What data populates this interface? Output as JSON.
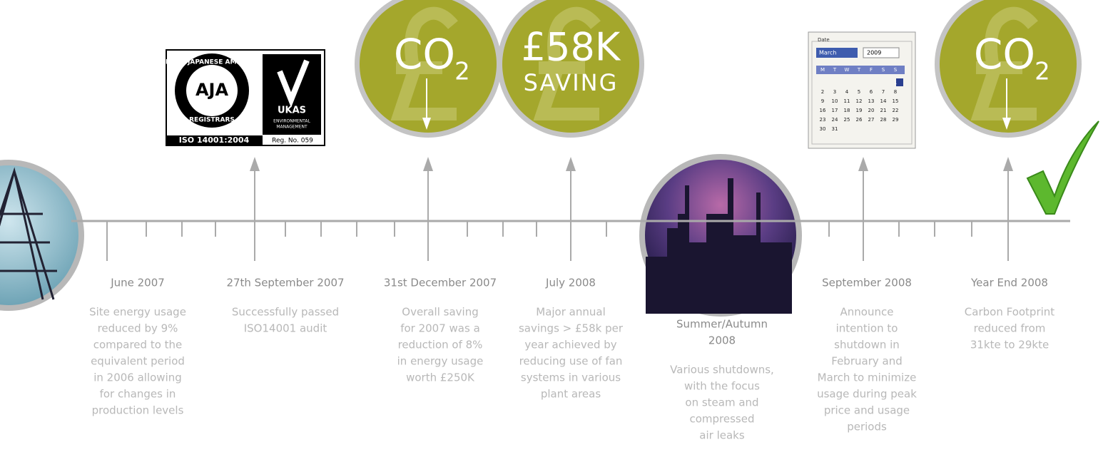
{
  "events": [
    {
      "date_lines": [
        "June 2007"
      ],
      "description_lines": [
        "Site energy usage",
        "reduced by 9%",
        "compared to the",
        "equivalent period",
        "in 2006 allowing",
        "for changes in",
        "production levels"
      ]
    },
    {
      "date_lines": [
        "27th September 2007"
      ],
      "description_lines": [
        "Successfully passed",
        "ISO14001 audit"
      ]
    },
    {
      "date_lines": [
        "31st December 2007"
      ],
      "description_lines": [
        "Overall saving",
        "for 2007 was a",
        "reduction of 8%",
        "in energy usage",
        "worth £250K"
      ]
    },
    {
      "date_lines": [
        "July 2008"
      ],
      "description_lines": [
        "Major annual",
        "savings > £58k per",
        "year achieved by",
        "reducing use of fan",
        "systems in various",
        "plant areas"
      ]
    },
    {
      "date_lines": [
        "Summer/Autumn",
        "2008"
      ],
      "description_lines": [
        "Various shutdowns,",
        "with the focus",
        "on steam and",
        "compressed",
        "air leaks"
      ]
    },
    {
      "date_lines": [
        "September 2008"
      ],
      "description_lines": [
        "Announce",
        "intention to",
        "shutdown in",
        "February and",
        "March to minimize",
        "usage during peak",
        "price and usage",
        "periods"
      ]
    },
    {
      "date_lines": [
        "Year End 2008"
      ],
      "description_lines": [
        "Carbon Footprint",
        "reduced from",
        "31kte to 29kte"
      ]
    }
  ],
  "badges": [
    {
      "main": "CO",
      "sub": "2"
    },
    {
      "main": "£58K",
      "sub": "SAVING"
    },
    {
      "main": "CO",
      "sub": "2"
    }
  ],
  "certificate": {
    "ring_top": "ANGLO JAPANESE AMERICAN",
    "logo": "AJA",
    "ring_bottom": "REGISTRARS",
    "body": "UKAS",
    "body_sub_1": "ENVIRONMENTAL",
    "body_sub_2": "MANAGEMENT",
    "standard": "ISO 14001:2004",
    "reg": "Reg. No. 059"
  },
  "calendar": {
    "label": "Date",
    "month": "March",
    "year": "2009",
    "weekdays": [
      "M",
      "T",
      "W",
      "T",
      "F",
      "S",
      "S"
    ],
    "days": [
      "1",
      "2",
      "3",
      "4",
      "5",
      "6",
      "7",
      "8",
      "9",
      "10",
      "11",
      "12",
      "13",
      "14",
      "15",
      "16",
      "17",
      "18",
      "19",
      "20",
      "21",
      "22",
      "23",
      "24",
      "25",
      "26",
      "27",
      "28",
      "29",
      "30",
      "31"
    ]
  }
}
